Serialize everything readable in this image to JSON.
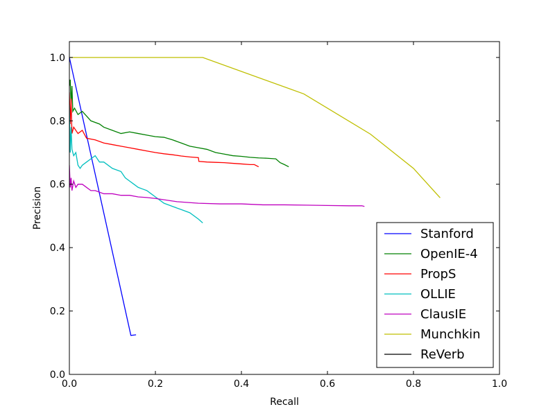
{
  "chart_data": {
    "type": "line",
    "xlabel": "Recall",
    "ylabel": "Precision",
    "xlim": [
      0.0,
      1.0
    ],
    "ylim": [
      0.0,
      1.05
    ],
    "xticks": [
      "0.0",
      "0.2",
      "0.4",
      "0.6",
      "0.8",
      "1.0"
    ],
    "yticks": [
      "0.0",
      "0.2",
      "0.4",
      "0.6",
      "0.8",
      "1.0"
    ],
    "grid": false,
    "legend_position": "lower-right",
    "series": [
      {
        "name": "Stanford",
        "color": "#0000ff",
        "x": [
          0.0,
          0.143,
          0.155
        ],
        "y": [
          1.0,
          0.123,
          0.125
        ]
      },
      {
        "name": "OpenIE-4",
        "color": "#008000",
        "x": [
          0.0,
          0.002,
          0.004,
          0.006,
          0.008,
          0.012,
          0.02,
          0.03,
          0.05,
          0.07,
          0.08,
          0.1,
          0.12,
          0.14,
          0.16,
          0.18,
          0.2,
          0.22,
          0.24,
          0.26,
          0.28,
          0.3,
          0.32,
          0.34,
          0.36,
          0.38,
          0.4,
          0.42,
          0.44,
          0.46,
          0.48,
          0.49,
          0.5,
          0.51
        ],
        "y": [
          0.91,
          0.93,
          0.85,
          0.91,
          0.83,
          0.84,
          0.82,
          0.83,
          0.8,
          0.79,
          0.78,
          0.77,
          0.76,
          0.765,
          0.76,
          0.755,
          0.75,
          0.748,
          0.74,
          0.73,
          0.72,
          0.715,
          0.71,
          0.7,
          0.695,
          0.69,
          0.688,
          0.685,
          0.683,
          0.682,
          0.68,
          0.668,
          0.662,
          0.655
        ]
      },
      {
        "name": "PropS",
        "color": "#ff0000",
        "x": [
          0.0,
          0.002,
          0.004,
          0.006,
          0.01,
          0.02,
          0.03,
          0.04,
          0.06,
          0.08,
          0.1,
          0.12,
          0.14,
          0.16,
          0.18,
          0.2,
          0.22,
          0.24,
          0.26,
          0.28,
          0.3,
          0.301,
          0.32,
          0.34,
          0.36,
          0.38,
          0.4,
          0.42,
          0.43,
          0.44
        ],
        "y": [
          0.89,
          0.79,
          0.87,
          0.76,
          0.78,
          0.76,
          0.77,
          0.745,
          0.74,
          0.73,
          0.725,
          0.72,
          0.715,
          0.71,
          0.705,
          0.7,
          0.696,
          0.693,
          0.689,
          0.686,
          0.684,
          0.672,
          0.67,
          0.669,
          0.668,
          0.666,
          0.664,
          0.662,
          0.662,
          0.655
        ]
      },
      {
        "name": "OLLIE",
        "color": "#00bfbf",
        "x": [
          0.0,
          0.002,
          0.004,
          0.006,
          0.01,
          0.015,
          0.02,
          0.025,
          0.03,
          0.04,
          0.05,
          0.06,
          0.07,
          0.08,
          0.1,
          0.12,
          0.13,
          0.14,
          0.15,
          0.16,
          0.17,
          0.18,
          0.19,
          0.2,
          0.21,
          0.22,
          0.24,
          0.26,
          0.28,
          0.3,
          0.31
        ],
        "y": [
          0.85,
          0.7,
          0.78,
          0.71,
          0.69,
          0.7,
          0.66,
          0.65,
          0.66,
          0.67,
          0.68,
          0.69,
          0.67,
          0.67,
          0.65,
          0.64,
          0.62,
          0.61,
          0.6,
          0.59,
          0.585,
          0.58,
          0.57,
          0.56,
          0.55,
          0.54,
          0.53,
          0.52,
          0.51,
          0.49,
          0.478
        ]
      },
      {
        "name": "ClausIE",
        "color": "#bf00bf",
        "x": [
          0.0,
          0.002,
          0.004,
          0.006,
          0.01,
          0.015,
          0.02,
          0.03,
          0.04,
          0.05,
          0.06,
          0.08,
          0.1,
          0.12,
          0.14,
          0.16,
          0.18,
          0.2,
          0.25,
          0.3,
          0.35,
          0.4,
          0.45,
          0.5,
          0.55,
          0.6,
          0.65,
          0.68,
          0.686
        ],
        "y": [
          0.66,
          0.59,
          0.62,
          0.58,
          0.61,
          0.59,
          0.6,
          0.6,
          0.59,
          0.58,
          0.58,
          0.57,
          0.57,
          0.565,
          0.565,
          0.56,
          0.558,
          0.555,
          0.545,
          0.54,
          0.538,
          0.538,
          0.535,
          0.535,
          0.534,
          0.533,
          0.532,
          0.532,
          0.53
        ]
      },
      {
        "name": "Munchkin",
        "color": "#bfbf00",
        "x": [
          0.0,
          0.31,
          0.545,
          0.7,
          0.8,
          0.862
        ],
        "y": [
          1.0,
          1.0,
          0.885,
          0.758,
          0.65,
          0.557
        ]
      },
      {
        "name": "ReVerb",
        "color": "#000000",
        "x": [],
        "y": []
      }
    ]
  }
}
